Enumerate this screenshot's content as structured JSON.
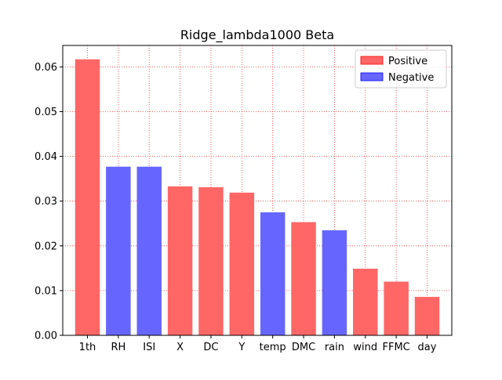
{
  "chart_data": {
    "type": "bar",
    "title": "Ridge_lambda1000 Beta",
    "xlabel": "",
    "ylabel": "",
    "categories": [
      "1th",
      "RH",
      "ISI",
      "X",
      "DC",
      "Y",
      "temp",
      "DMC",
      "rain",
      "wind",
      "FFMC",
      "day"
    ],
    "values": [
      0.0617,
      0.0377,
      0.0377,
      0.0333,
      0.0331,
      0.0319,
      0.0275,
      0.0253,
      0.0235,
      0.0149,
      0.012,
      0.0086
    ],
    "signs": [
      "Positive",
      "Negative",
      "Negative",
      "Positive",
      "Positive",
      "Positive",
      "Negative",
      "Positive",
      "Negative",
      "Positive",
      "Positive",
      "Positive"
    ],
    "ylim": [
      0,
      0.0648
    ],
    "yticks": [
      "0.00",
      "0.01",
      "0.02",
      "0.03",
      "0.04",
      "0.05",
      "0.06"
    ],
    "grid": true,
    "legend": {
      "placement": "top-right",
      "entries": [
        {
          "label": "Positive",
          "color": "#ff6666"
        },
        {
          "label": "Negative",
          "color": "#6666ff"
        }
      ]
    },
    "colors": {
      "Positive": "#ff6666",
      "Negative": "#6666ff",
      "PositiveEdge": "#ff0000",
      "NegativeEdge": "#0000ff",
      "grid": "#ff0000"
    }
  }
}
